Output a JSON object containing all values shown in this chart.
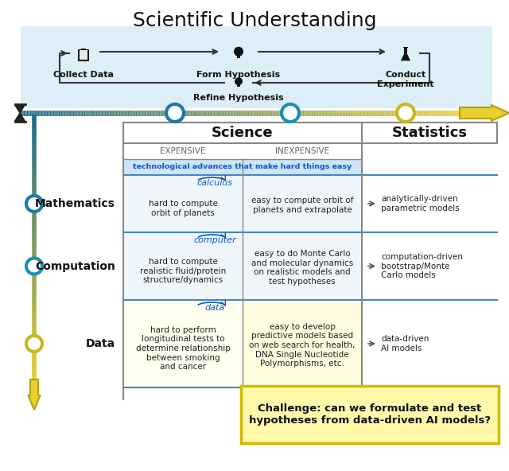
{
  "title": "Scientific Understanding",
  "title_fontsize": 18,
  "bg_color": "#ffffff",
  "sci_loop_bg": "#ddeef8",
  "table_header_science": "Science",
  "table_header_statistics": "Statistics",
  "col_expensive": "EXPENSIVE",
  "col_inexpensive": "INEXPENSIVE",
  "tech_advances_text": "technological advances that make hard things easy",
  "rows": [
    {
      "label": "Mathematics",
      "tech": "calculus",
      "expensive": "hard to compute\norbit of planets",
      "inexpensive": "easy to compute orbit of\nplanets and extrapolate",
      "stats": "analytically-driven\nparametric models",
      "circle_color": "#1a7aaa"
    },
    {
      "label": "Computation",
      "tech": "computer",
      "expensive": "hard to compute\nrealistic fluid/protein\nstructure/dynamics",
      "inexpensive": "easy to do Monte Carlo\nand molecular dynamics\non realistic models and\ntest hypotheses",
      "stats": "computation-driven\nbootstrap/Monte\nCarlo models",
      "circle_color": "#1a8fbb"
    },
    {
      "label": "Data",
      "tech": "data",
      "expensive": "hard to perform\nlongitudinal tests to\ndetermine relationship\nbetween smoking\nand cancer",
      "inexpensive": "easy to develop\npredictive models based\non web search for health,\nDNA Single Nucleotide\nPolymorphisms, etc.",
      "stats": "data-driven\nAI models",
      "circle_color": "#c8b820"
    }
  ],
  "challenge_text": "Challenge: can we formulate and test\nhypotheses from data-driven AI models?",
  "challenge_bg": "#fffaaa",
  "challenge_border": "#d4b800"
}
